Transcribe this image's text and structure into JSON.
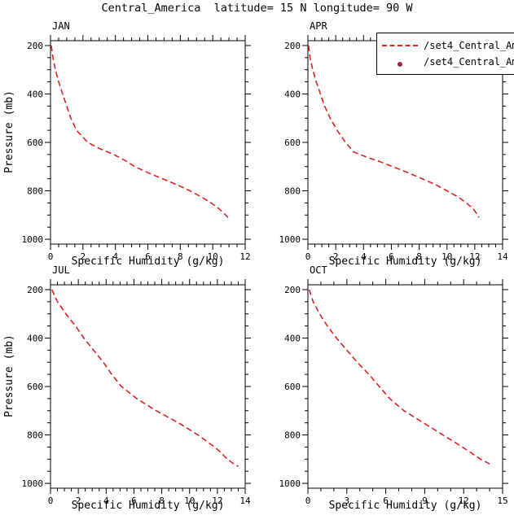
{
  "header": {
    "title": "Central_America  latitude= 15 N longitude= 90 W"
  },
  "legend": {
    "line_color": "#dd2222",
    "dot_color": "#a02545",
    "entries": [
      {
        "label": "/set4_Central_Am",
        "type": "dashed-line"
      },
      {
        "label": "/set4_Central_Am",
        "type": "dot-marker"
      }
    ]
  },
  "chart_data": [
    {
      "type": "line",
      "title": "JAN",
      "xlabel": "Specific Humidity (g/kg)",
      "ylabel": "Pressure (mb)",
      "xlim": [
        0,
        12
      ],
      "xticks": [
        0,
        2,
        4,
        6,
        8,
        10,
        12
      ],
      "xminor_step": 0.5,
      "plim": [
        180,
        1020
      ],
      "yticks": [
        200,
        400,
        600,
        800,
        1000
      ],
      "yminor_step": 50,
      "y_axis_inverted": true,
      "grid": false,
      "series": [
        {
          "name": "/set4_Central_Am",
          "style": "dashed",
          "color": "#dd2222",
          "points": [
            [
              200,
              0.05
            ],
            [
              250,
              0.15
            ],
            [
              300,
              0.3
            ],
            [
              350,
              0.5
            ],
            [
              400,
              0.75
            ],
            [
              450,
              1.0
            ],
            [
              500,
              1.25
            ],
            [
              550,
              1.6
            ],
            [
              600,
              2.3
            ],
            [
              625,
              3.0
            ],
            [
              650,
              3.9
            ],
            [
              675,
              4.6
            ],
            [
              700,
              5.2
            ],
            [
              725,
              6.0
            ],
            [
              750,
              6.9
            ],
            [
              775,
              7.8
            ],
            [
              800,
              8.6
            ],
            [
              825,
              9.3
            ],
            [
              850,
              9.9
            ],
            [
              875,
              10.4
            ],
            [
              900,
              10.8
            ],
            [
              915,
              11.0
            ]
          ]
        }
      ]
    },
    {
      "type": "line",
      "title": "APR",
      "xlabel": "Specific Humidity (g/kg)",
      "ylabel": "",
      "xlim": [
        0,
        14
      ],
      "xticks": [
        0,
        2,
        4,
        6,
        8,
        10,
        12,
        14
      ],
      "xminor_step": 0.5,
      "plim": [
        180,
        1020
      ],
      "yticks": [
        200,
        400,
        600,
        800,
        1000
      ],
      "yminor_step": 50,
      "y_axis_inverted": true,
      "grid": false,
      "series": [
        {
          "name": "/set4_Central_Am",
          "style": "dashed",
          "color": "#dd2222",
          "points": [
            [
              200,
              0.05
            ],
            [
              250,
              0.15
            ],
            [
              300,
              0.35
            ],
            [
              350,
              0.6
            ],
            [
              400,
              0.9
            ],
            [
              450,
              1.2
            ],
            [
              500,
              1.6
            ],
            [
              550,
              2.1
            ],
            [
              600,
              2.7
            ],
            [
              640,
              3.3
            ],
            [
              660,
              4.2
            ],
            [
              680,
              5.2
            ],
            [
              700,
              6.1
            ],
            [
              725,
              7.2
            ],
            [
              750,
              8.2
            ],
            [
              775,
              9.2
            ],
            [
              800,
              10.0
            ],
            [
              825,
              10.8
            ],
            [
              850,
              11.4
            ],
            [
              875,
              11.9
            ],
            [
              900,
              12.2
            ],
            [
              910,
              12.3
            ]
          ]
        }
      ]
    },
    {
      "type": "line",
      "title": "JUL",
      "xlabel": "Specific Humidity (g/kg)",
      "ylabel": "Pressure (mb)",
      "xlim": [
        0,
        14
      ],
      "xticks": [
        0,
        2,
        4,
        6,
        8,
        10,
        12,
        14
      ],
      "xminor_step": 0.5,
      "plim": [
        180,
        1020
      ],
      "yticks": [
        200,
        400,
        600,
        800,
        1000
      ],
      "yminor_step": 50,
      "y_axis_inverted": true,
      "grid": false,
      "series": [
        {
          "name": "/set4_Central_Am",
          "style": "dashed",
          "color": "#dd2222",
          "points": [
            [
              200,
              0.1
            ],
            [
              250,
              0.5
            ],
            [
              300,
              1.1
            ],
            [
              350,
              1.8
            ],
            [
              400,
              2.4
            ],
            [
              450,
              3.1
            ],
            [
              500,
              3.8
            ],
            [
              550,
              4.4
            ],
            [
              600,
              5.1
            ],
            [
              650,
              6.2
            ],
            [
              700,
              7.6
            ],
            [
              750,
              9.2
            ],
            [
              800,
              10.6
            ],
            [
              850,
              11.8
            ],
            [
              875,
              12.3
            ],
            [
              900,
              12.7
            ],
            [
              920,
              13.2
            ],
            [
              930,
              13.5
            ]
          ]
        }
      ]
    },
    {
      "type": "line",
      "title": "OCT",
      "xlabel": "Specific Humidity (g/kg)",
      "ylabel": "",
      "xlim": [
        0,
        15
      ],
      "xticks": [
        0,
        3,
        6,
        9,
        12,
        15
      ],
      "xminor_step": 1,
      "plim": [
        180,
        1020
      ],
      "yticks": [
        200,
        400,
        600,
        800,
        1000
      ],
      "yminor_step": 50,
      "y_axis_inverted": true,
      "grid": false,
      "series": [
        {
          "name": "/set4_Central_Am",
          "style": "dashed",
          "color": "#dd2222",
          "points": [
            [
              200,
              0.1
            ],
            [
              250,
              0.4
            ],
            [
              300,
              0.9
            ],
            [
              350,
              1.5
            ],
            [
              400,
              2.2
            ],
            [
              450,
              3.0
            ],
            [
              500,
              3.8
            ],
            [
              550,
              4.7
            ],
            [
              600,
              5.5
            ],
            [
              650,
              6.3
            ],
            [
              700,
              7.4
            ],
            [
              750,
              8.9
            ],
            [
              800,
              10.4
            ],
            [
              850,
              11.9
            ],
            [
              875,
              12.6
            ],
            [
              900,
              13.3
            ],
            [
              920,
              14.0
            ]
          ]
        }
      ]
    }
  ]
}
